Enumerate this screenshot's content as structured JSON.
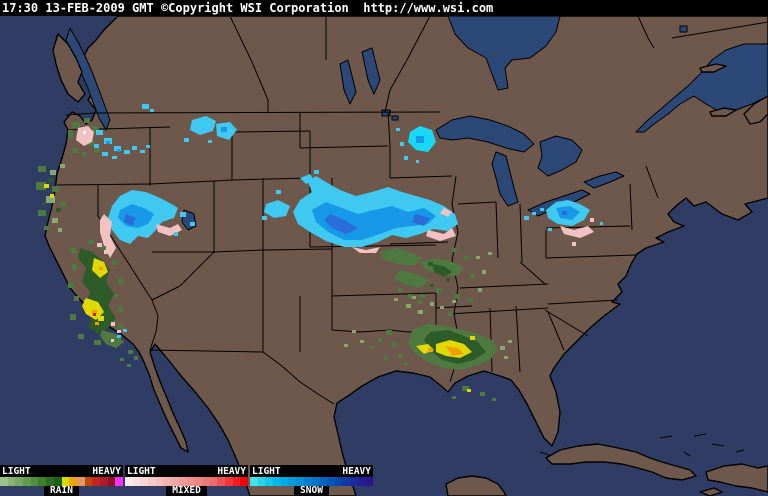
{
  "header": {
    "text": "17:30 13-FEB-2009 GMT ©Copyright WSI Corporation  http://www.wsi.com"
  },
  "map": {
    "colors": {
      "ocean": "#2f3d64",
      "land": "#6e584b",
      "lake": "#2c4876",
      "border": "#000000",
      "snow_light": "#3fc8f0",
      "snow_bright": "#18d8f8",
      "snow_mid": "#1898e8",
      "snow_heavy": "#2a6cd8",
      "rain_light": "#86a872",
      "rain_mid": "#4e7a42",
      "rain_heavy": "#2e5c28",
      "rain_yellow": "#e0d800",
      "rain_orange": "#f0a000",
      "rain_red": "#c42424",
      "mixed_pink": "#f2c2c2",
      "white": "#f8f8f8"
    }
  },
  "legend": {
    "scales": [
      {
        "label": "RAIN",
        "light": "LIGHT",
        "heavy": "HEAVY",
        "colors": [
          "#9dbf8b",
          "#8bb377",
          "#77a763",
          "#639b4f",
          "#4f8f3b",
          "#3d7f2b",
          "#2b6f1d",
          "#1d5f13",
          "#d6dc00",
          "#f0a400",
          "#dc9a6a",
          "#bc4a00",
          "#c42424",
          "#aa1c2c",
          "#8e1222",
          "#fa30fa"
        ]
      },
      {
        "label": "MIXED",
        "light": "LIGHT",
        "heavy": "HEAVY",
        "colors": [
          "#fbeaea",
          "#f9dfdf",
          "#f8d4d4",
          "#f6c9c9",
          "#f5bdbd",
          "#f3b2b2",
          "#f2a7a7",
          "#f09b9b",
          "#ef9090",
          "#ed8585",
          "#ec7979",
          "#ea6e6e",
          "#ec5454",
          "#f03838",
          "#f41c1c",
          "#f80000"
        ]
      },
      {
        "label": "SNOW",
        "light": "LIGHT",
        "heavy": "HEAVY",
        "colors": [
          "#46e2ea",
          "#2cd4ea",
          "#12c6ea",
          "#00b8ea",
          "#00aae4",
          "#009cdc",
          "#008ed4",
          "#0080cc",
          "#0072c4",
          "#0064bc",
          "#0056b4",
          "#0048ac",
          "#1238a4",
          "#1c2c9c",
          "#242094",
          "#2a188c"
        ]
      }
    ]
  }
}
